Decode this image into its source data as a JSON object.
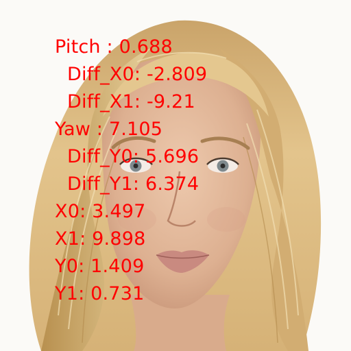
{
  "overlay": {
    "lines": [
      "Pitch : 0.688",
      "Diff_X0: -2.809",
      "Diff_X1: -9.21",
      "Yaw : 7.105",
      "Diff_Y0: 5.696",
      "Diff_Y1: 6.374",
      "X0: 3.497",
      "X1: 9.898",
      "Y0: 1.409",
      "Y1: 0.731"
    ],
    "color": "#ff0000"
  },
  "photo": {
    "subject": "portrait of a blonde woman",
    "colors": {
      "background": "#fbfaf7",
      "hair": "#d8b77a",
      "skin": "#e2b89a",
      "eyes": "#7f8a8e",
      "lips": "#c98a80"
    }
  }
}
